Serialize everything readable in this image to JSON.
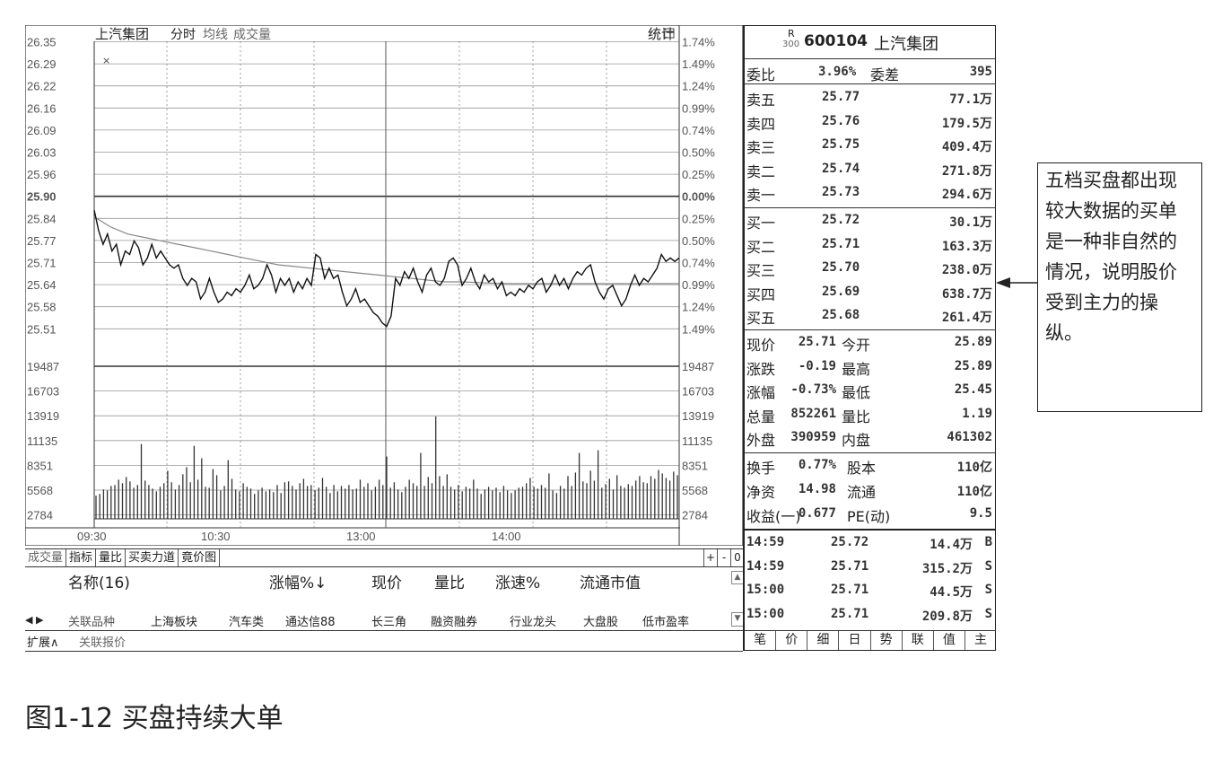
{
  "chart": {
    "stock_name": "上汽集团",
    "mode_tabs": [
      "分时",
      "均线",
      "成交量"
    ],
    "stats_label": "统计",
    "price_labels": [
      "26.35",
      "26.29",
      "26.22",
      "26.16",
      "26.09",
      "26.03",
      "25.96",
      "25.90",
      "25.84",
      "25.77",
      "25.71",
      "25.64",
      "25.58",
      "25.51"
    ],
    "pct_labels": [
      "1.74%",
      "1.49%",
      "1.24%",
      "0.99%",
      "0.74%",
      "0.50%",
      "0.25%",
      "0.00%",
      "0.25%",
      "0.50%",
      "0.74%",
      "0.99%",
      "1.24%",
      "1.49%"
    ],
    "vol_labels": [
      "19487",
      "16703",
      "13919",
      "11135",
      "8351",
      "5568",
      "2784"
    ],
    "time_labels": [
      "09:30",
      "10:30",
      "13:00",
      "14:00"
    ],
    "price_series": [
      25.86,
      25.8,
      25.76,
      25.79,
      25.74,
      25.76,
      25.7,
      25.74,
      25.73,
      25.77,
      25.75,
      25.7,
      25.72,
      25.76,
      25.72,
      25.74,
      25.72,
      25.7,
      25.69,
      25.7,
      25.66,
      25.64,
      25.66,
      25.65,
      25.6,
      25.62,
      25.66,
      25.62,
      25.59,
      25.6,
      25.62,
      25.61,
      25.63,
      25.62,
      25.64,
      25.67,
      25.63,
      25.64,
      25.66,
      25.7,
      25.67,
      25.62,
      25.66,
      25.64,
      25.66,
      25.62,
      25.65,
      25.63,
      25.66,
      25.64,
      25.73,
      25.72,
      25.66,
      25.69,
      25.66,
      25.67,
      25.62,
      25.58,
      25.6,
      25.63,
      25.59,
      25.6,
      25.58,
      25.56,
      25.55,
      25.53,
      25.52,
      25.55,
      25.66,
      25.64,
      25.68,
      25.66,
      25.69,
      25.65,
      25.62,
      25.67,
      25.69,
      25.65,
      25.64,
      25.66,
      25.71,
      25.72,
      25.7,
      25.64,
      25.66,
      25.69,
      25.65,
      25.63,
      25.67,
      25.65,
      25.66,
      25.63,
      25.65,
      25.61,
      25.62,
      25.61,
      25.63,
      25.62,
      25.64,
      25.63,
      25.65,
      25.66,
      25.62,
      25.64,
      25.67,
      25.64,
      25.66,
      25.63,
      25.66,
      25.68,
      25.67,
      25.69,
      25.7,
      25.65,
      25.62,
      25.6,
      25.63,
      25.64,
      25.61,
      25.58,
      25.6,
      25.64,
      25.67,
      25.64,
      25.66,
      25.65,
      25.67,
      25.69,
      25.73,
      25.71,
      25.72,
      25.71,
      25.72
    ],
    "avg_series": [
      25.84,
      25.81,
      25.79,
      25.78,
      25.77,
      25.76,
      25.75,
      25.74,
      25.73,
      25.72,
      25.71,
      25.7,
      25.695,
      25.69,
      25.685,
      25.68,
      25.675,
      25.67,
      25.665,
      25.66,
      25.655,
      25.65,
      25.65,
      25.648,
      25.646,
      25.645,
      25.645,
      25.645,
      25.645,
      25.645,
      25.645,
      25.645,
      25.645,
      25.645,
      25.645,
      25.645
    ],
    "volume_series": [
      2400,
      2600,
      3100,
      3000,
      3500,
      3600,
      4200,
      3800,
      4500,
      4000,
      3300,
      3600,
      8200,
      4100,
      3600,
      3200,
      2900,
      3400,
      3800,
      5200,
      3900,
      3100,
      3600,
      4800,
      5600,
      3900,
      8000,
      4200,
      6600,
      3400,
      3300,
      5400,
      4700,
      3000,
      3500,
      6400,
      4300,
      3100,
      2900,
      3800,
      3400,
      3200,
      2600,
      3000,
      3300,
      2900,
      3100,
      2800,
      3600,
      2700,
      3900,
      4000,
      3500,
      3100,
      3800,
      4300,
      3500,
      3600,
      3000,
      3300,
      4400,
      3400,
      2700,
      3600,
      2900,
      3500,
      3200,
      3600,
      3100,
      3200,
      4200,
      3400,
      3800,
      3000,
      3400,
      4200,
      3600,
      6800,
      3300,
      3900,
      3100,
      2800,
      3400,
      4200,
      3800,
      3500,
      7200,
      3500,
      4500,
      3800,
      11300,
      4600,
      3500,
      4800,
      3400,
      3100,
      3600,
      2900,
      3400,
      3200,
      4200,
      3200,
      2600,
      3100,
      3400,
      3000,
      3300,
      2800,
      3500,
      3000,
      2700,
      3000,
      3300,
      3400,
      3800,
      4400,
      3400,
      3200,
      3600,
      3300,
      4900,
      3000,
      2700,
      3500,
      3200,
      4600,
      3500,
      5000,
      7200,
      4000,
      3800,
      5200,
      4100,
      7500,
      3300,
      3700,
      4300,
      3100,
      4700,
      3500,
      3300,
      3700,
      3500,
      4100,
      4600,
      3900,
      3800,
      4600,
      4300,
      5300,
      4900,
      4400,
      4100,
      5100,
      4700
    ]
  },
  "bottom": {
    "buttons": [
      "成交量",
      "指标",
      "量比",
      "买卖力道",
      "竟价图"
    ],
    "plus": "+",
    "minus": "-",
    "zero": "0",
    "columns": [
      "名称(16)",
      "涨幅%↓",
      "现价",
      "量比",
      "涨速%",
      "流通市值"
    ],
    "tabs": [
      "◀ ▶",
      "关联品种",
      "上海板块",
      "汽车类",
      "通达信88",
      "长三角",
      "融资融券",
      "行业龙头",
      "大盘股",
      "低市盈率"
    ],
    "ext": [
      "扩展∧",
      "关联报价"
    ]
  },
  "quote": {
    "board": "R",
    "board_sub": "300",
    "code": "600104",
    "name": "上汽集团",
    "weibi_label": "委比",
    "weibi": "3.96%",
    "weicha_label": "委差",
    "weicha": "395",
    "sells": [
      {
        "label": "卖五",
        "price": "25.77",
        "vol": "77.1万"
      },
      {
        "label": "卖四",
        "price": "25.76",
        "vol": "179.5万"
      },
      {
        "label": "卖三",
        "price": "25.75",
        "vol": "409.4万"
      },
      {
        "label": "卖二",
        "price": "25.74",
        "vol": "271.8万"
      },
      {
        "label": "卖一",
        "price": "25.73",
        "vol": "294.6万"
      }
    ],
    "buys": [
      {
        "label": "买一",
        "price": "25.72",
        "vol": "30.1万"
      },
      {
        "label": "买二",
        "price": "25.71",
        "vol": "163.3万"
      },
      {
        "label": "买三",
        "price": "25.70",
        "vol": "238.0万"
      },
      {
        "label": "买四",
        "price": "25.69",
        "vol": "638.7万"
      },
      {
        "label": "买五",
        "price": "25.68",
        "vol": "261.4万"
      }
    ],
    "stats1": [
      {
        "l1": "现价",
        "v1": "25.71",
        "l2": "今开",
        "v2": "25.89"
      },
      {
        "l1": "涨跌",
        "v1": "-0.19",
        "l2": "最高",
        "v2": "25.89"
      },
      {
        "l1": "涨幅",
        "v1": "-0.73%",
        "l2": "最低",
        "v2": "25.45"
      },
      {
        "l1": "总量",
        "v1": "852261",
        "l2": "量比",
        "v2": "1.19"
      },
      {
        "l1": "外盘",
        "v1": "390959",
        "l2": "内盘",
        "v2": "461302"
      }
    ],
    "stats2": [
      {
        "l1": "换手",
        "v1": "0.77%",
        "l2": "股本",
        "v2": "110亿"
      },
      {
        "l1": "净资",
        "v1": "14.98",
        "l2": "流通",
        "v2": "110亿"
      },
      {
        "l1": "收益(一)",
        "v1": "0.677",
        "l2": "PE(动)",
        "v2": "9.5"
      }
    ],
    "ticks": [
      {
        "time": "14:59",
        "price": "25.72",
        "vol": "14.4万",
        "side": "B"
      },
      {
        "time": "14:59",
        "price": "25.71",
        "vol": "315.2万",
        "side": "S"
      },
      {
        "time": "15:00",
        "price": "25.71",
        "vol": "44.5万",
        "side": "S"
      },
      {
        "time": "15:00",
        "price": "25.71",
        "vol": "209.8万",
        "side": "S"
      }
    ],
    "bottom_tabs": [
      "笔",
      "价",
      "细",
      "日",
      "势",
      "联",
      "值",
      "主"
    ]
  },
  "callout": "五档买盘都出现较大数据的买单是一种非自然的情况，说明股价受到主力的操纵。",
  "caption": "图1-12 买盘持续大单"
}
